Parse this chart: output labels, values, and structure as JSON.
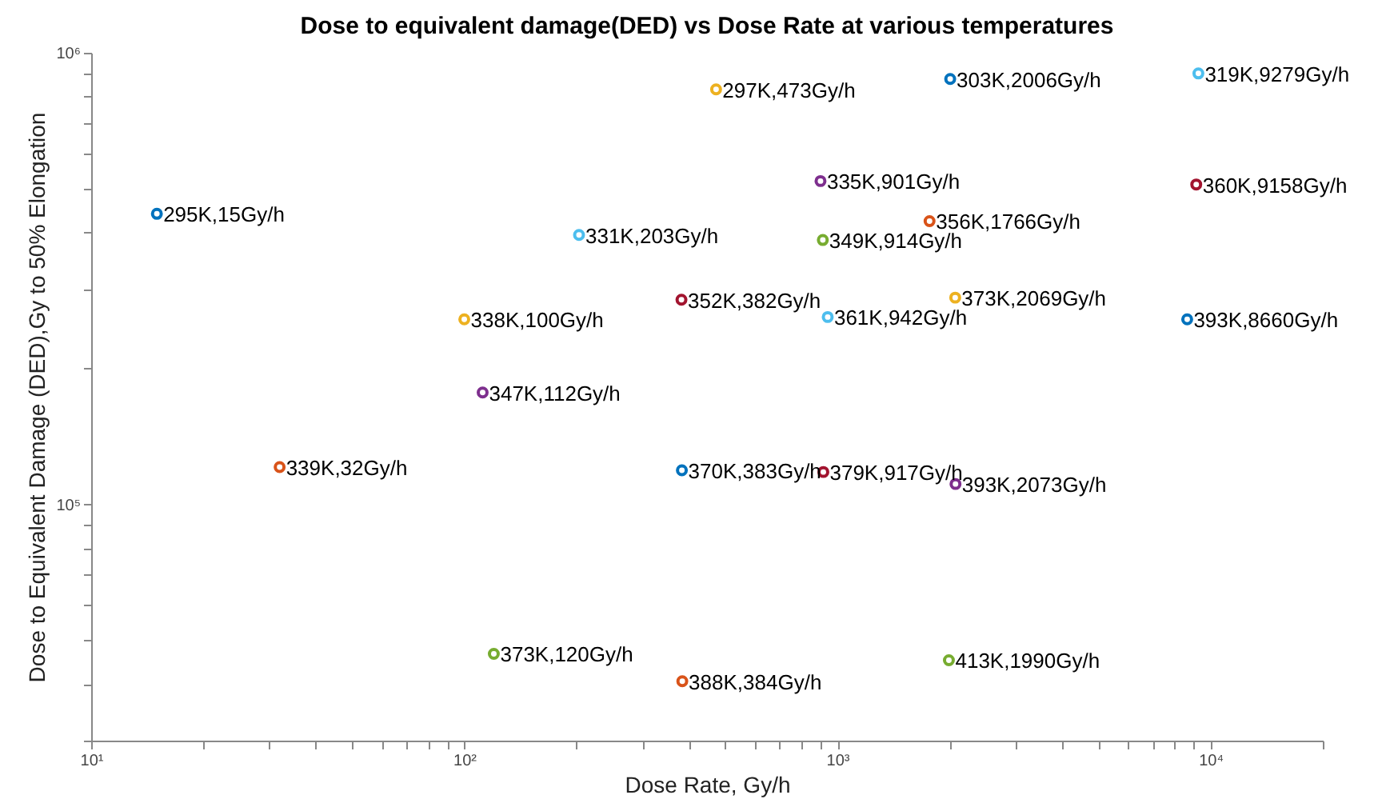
{
  "chart_data": {
    "type": "scatter",
    "title": "Dose to equivalent damage(DED) vs Dose Rate at various temperatures",
    "xlabel": "Dose Rate, Gy/h",
    "ylabel": "Dose to Equivalent Damage (DED),Gy to 50% Elongation",
    "x": [
      15,
      473,
      2006,
      9279,
      203,
      901,
      100,
      32,
      112,
      914,
      382,
      1766,
      9158,
      942,
      2069,
      120,
      383,
      917,
      384,
      2073,
      8660,
      1990
    ],
    "values": [
      440000,
      830000,
      875000,
      900000,
      395000,
      520000,
      257000,
      121000,
      177000,
      385000,
      284000,
      424000,
      511000,
      260000,
      287000,
      46700,
      119000,
      118000,
      40600,
      111000,
      257000,
      45200
    ],
    "colors": [
      "#0072bd",
      "#edb120",
      "#0072bd",
      "#4dbeee",
      "#4dbeee",
      "#7e2f8e",
      "#edb120",
      "#d95319",
      "#7e2f8e",
      "#77ac30",
      "#a2142f",
      "#d95319",
      "#a2142f",
      "#4dbeee",
      "#edb120",
      "#77ac30",
      "#0072bd",
      "#a2142f",
      "#d95319",
      "#7e2f8e",
      "#0072bd",
      "#77ac30"
    ],
    "annotations": [
      {
        "text": "295K,15Gy/h",
        "x": 15,
        "y": 440000
      },
      {
        "text": "297K,473Gy/h",
        "x": 473,
        "y": 830000
      },
      {
        "text": "303K,2006Gy/h",
        "x": 2006,
        "y": 875000
      },
      {
        "text": "319K,9279Gy/h",
        "x": 9279,
        "y": 900000
      },
      {
        "text": "331K,203Gy/h",
        "x": 203,
        "y": 395000
      },
      {
        "text": "335K,901Gy/h",
        "x": 901,
        "y": 520000
      },
      {
        "text": "338K,100Gy/h",
        "x": 100,
        "y": 257000
      },
      {
        "text": "339K,32Gy/h",
        "x": 32,
        "y": 121000
      },
      {
        "text": "347K,112Gy/h",
        "x": 112,
        "y": 177000
      },
      {
        "text": "349K,914Gy/h",
        "x": 914,
        "y": 385000
      },
      {
        "text": "352K,382Gy/h",
        "x": 382,
        "y": 284000
      },
      {
        "text": "356K,1766Gy/h",
        "x": 1766,
        "y": 424000
      },
      {
        "text": "360K,9158Gy/h",
        "x": 9158,
        "y": 511000
      },
      {
        "text": "361K,942Gy/h",
        "x": 942,
        "y": 260000
      },
      {
        "text": "373K,2069Gy/h",
        "x": 2069,
        "y": 287000
      },
      {
        "text": "373K,120Gy/h",
        "x": 120,
        "y": 46700
      },
      {
        "text": "370K,383Gy/h",
        "x": 383,
        "y": 119000
      },
      {
        "text": "379K,917Gy/h",
        "x": 917,
        "y": 118000
      },
      {
        "text": "388K,384Gy/h",
        "x": 384,
        "y": 40600
      },
      {
        "text": "393K,2073Gy/h",
        "x": 2073,
        "y": 111000
      },
      {
        "text": "393K,8660Gy/h",
        "x": 8660,
        "y": 257000
      },
      {
        "text": "413K,1990Gy/h",
        "x": 1990,
        "y": 45200
      }
    ],
    "log": "xy",
    "marker": "circle",
    "grid": false,
    "xlim": [
      10,
      20000
    ],
    "xticks": [
      {
        "value": 10,
        "label": "10¹"
      },
      {
        "value": 20,
        "label": null
      },
      {
        "value": 30,
        "label": null
      },
      {
        "value": 40,
        "label": null
      },
      {
        "value": 50,
        "label": null
      },
      {
        "value": 60,
        "label": null
      },
      {
        "value": 70,
        "label": null
      },
      {
        "value": 80,
        "label": null
      },
      {
        "value": 90,
        "label": null
      },
      {
        "value": 100,
        "label": "10²"
      },
      {
        "value": 200,
        "label": null
      },
      {
        "value": 300,
        "label": null
      },
      {
        "value": 400,
        "label": null
      },
      {
        "value": 500,
        "label": null
      },
      {
        "value": 600,
        "label": null
      },
      {
        "value": 700,
        "label": null
      },
      {
        "value": 800,
        "label": null
      },
      {
        "value": 900,
        "label": null
      },
      {
        "value": 1000,
        "label": "10³"
      },
      {
        "value": 2000,
        "label": null
      },
      {
        "value": 3000,
        "label": null
      },
      {
        "value": 4000,
        "label": null
      },
      {
        "value": 5000,
        "label": null
      },
      {
        "value": 6000,
        "label": null
      },
      {
        "value": 7000,
        "label": null
      },
      {
        "value": 8000,
        "label": null
      },
      {
        "value": 9000,
        "label": null
      },
      {
        "value": 10000,
        "label": "10⁴"
      },
      {
        "value": 20000,
        "label": null
      }
    ],
    "ylim": [
      30000,
      1000000
    ],
    "yticks": [
      {
        "value": 30000,
        "label": null
      },
      {
        "value": 40000,
        "label": null
      },
      {
        "value": 50000,
        "label": null
      },
      {
        "value": 60000,
        "label": null
      },
      {
        "value": 70000,
        "label": null
      },
      {
        "value": 80000,
        "label": null
      },
      {
        "value": 90000,
        "label": null
      },
      {
        "value": 100000,
        "label": "10⁵"
      },
      {
        "value": 200000,
        "label": null
      },
      {
        "value": 300000,
        "label": null
      },
      {
        "value": 400000,
        "label": null
      },
      {
        "value": 500000,
        "label": null
      },
      {
        "value": 600000,
        "label": null
      },
      {
        "value": 700000,
        "label": null
      },
      {
        "value": 800000,
        "label": null
      },
      {
        "value": 900000,
        "label": null
      },
      {
        "value": 1000000,
        "label": "10⁶"
      }
    ]
  }
}
